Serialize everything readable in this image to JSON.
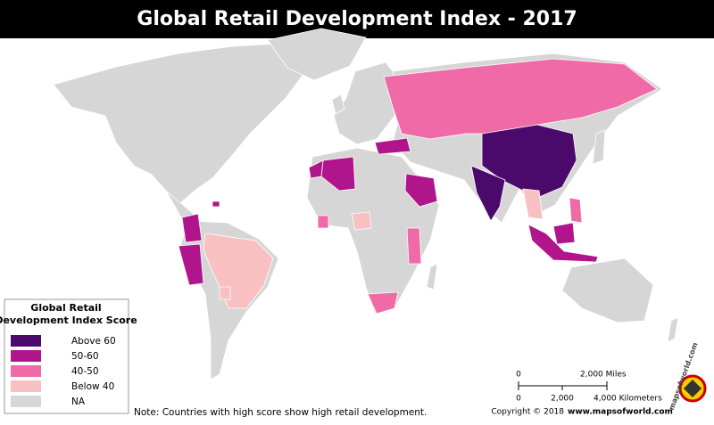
{
  "header": {
    "title": "Global Retail Development Index - 2017"
  },
  "legend": {
    "title_lines": [
      "Global Retail",
      "Development Index Score"
    ],
    "items": [
      {
        "label": "Above 60",
        "color": "#4b0a6b"
      },
      {
        "label": "50-60",
        "color": "#b0158c"
      },
      {
        "label": "40-50",
        "color": "#ef6aa6"
      },
      {
        "label": "Below 40",
        "color": "#f8c0c0"
      },
      {
        "label": "NA",
        "color": "#d6d6d6"
      }
    ]
  },
  "scale": {
    "miles": [
      "0",
      "2,000 Miles"
    ],
    "km": [
      "0",
      "2,000",
      "4,000 Kilometers"
    ]
  },
  "footer": {
    "note": "Note: Countries with high score show high retail development.",
    "copyright": "Copyright © 2018",
    "site": "www.mapsofworld.com"
  },
  "watermark": "mapsofworld.com"
}
